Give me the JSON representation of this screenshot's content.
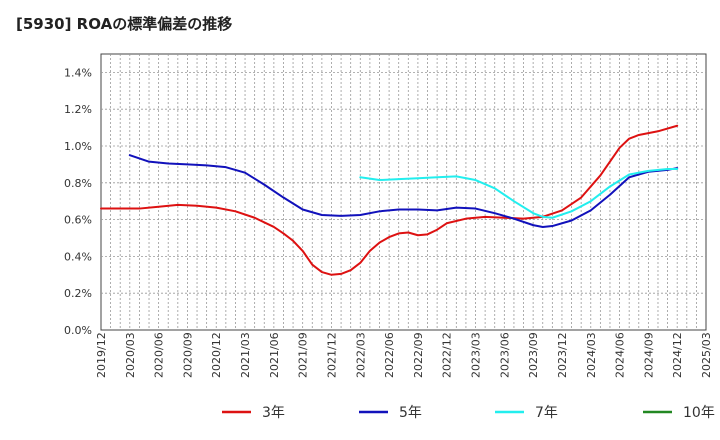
{
  "chart_data": {
    "type": "line",
    "title": "[5930]  ROAの標準偏差の推移",
    "xlabel": "",
    "ylabel": "",
    "ylim": [
      0,
      1.5
    ],
    "yticks": [
      "0.0%",
      "0.2%",
      "0.4%",
      "0.6%",
      "0.8%",
      "1.0%",
      "1.2%",
      "1.4%"
    ],
    "ytick_values": [
      0,
      0.2,
      0.4,
      0.6,
      0.8,
      1.0,
      1.2,
      1.4
    ],
    "xticks": [
      "2019/12",
      "2020/03",
      "2020/06",
      "2020/09",
      "2020/12",
      "2021/03",
      "2021/06",
      "2021/09",
      "2021/12",
      "2022/03",
      "2022/06",
      "2022/09",
      "2022/12",
      "2023/03",
      "2023/06",
      "2023/09",
      "2023/12",
      "2024/03",
      "2024/06",
      "2024/09",
      "2024/12",
      "2025/03"
    ],
    "grid": true,
    "legend_position": "bottom",
    "series": [
      {
        "name": "3年",
        "color": "#dd1111",
        "points": [
          [
            "2019/12",
            0.66
          ],
          [
            "2020/02",
            0.66
          ],
          [
            "2020/04",
            0.66
          ],
          [
            "2020/06",
            0.67
          ],
          [
            "2020/08",
            0.68
          ],
          [
            "2020/10",
            0.675
          ],
          [
            "2020/12",
            0.665
          ],
          [
            "2021/02",
            0.645
          ],
          [
            "2021/04",
            0.61
          ],
          [
            "2021/06",
            0.56
          ],
          [
            "2021/07",
            0.525
          ],
          [
            "2021/08",
            0.485
          ],
          [
            "2021/09",
            0.43
          ],
          [
            "2021/10",
            0.355
          ],
          [
            "2021/11",
            0.315
          ],
          [
            "2021/12",
            0.3
          ],
          [
            "2022/01",
            0.305
          ],
          [
            "2022/02",
            0.325
          ],
          [
            "2022/03",
            0.365
          ],
          [
            "2022/04",
            0.43
          ],
          [
            "2022/05",
            0.475
          ],
          [
            "2022/06",
            0.505
          ],
          [
            "2022/07",
            0.525
          ],
          [
            "2022/08",
            0.53
          ],
          [
            "2022/09",
            0.515
          ],
          [
            "2022/10",
            0.52
          ],
          [
            "2022/11",
            0.545
          ],
          [
            "2022/12",
            0.58
          ],
          [
            "2023/02",
            0.605
          ],
          [
            "2023/04",
            0.615
          ],
          [
            "2023/06",
            0.61
          ],
          [
            "2023/08",
            0.605
          ],
          [
            "2023/10",
            0.615
          ],
          [
            "2023/12",
            0.65
          ],
          [
            "2024/02",
            0.72
          ],
          [
            "2024/04",
            0.84
          ],
          [
            "2024/06",
            0.99
          ],
          [
            "2024/07",
            1.04
          ],
          [
            "2024/08",
            1.06
          ],
          [
            "2024/10",
            1.08
          ],
          [
            "2024/12",
            1.11
          ]
        ]
      },
      {
        "name": "5年",
        "color": "#1111bb",
        "points": [
          [
            "2020/03",
            0.95
          ],
          [
            "2020/05",
            0.915
          ],
          [
            "2020/07",
            0.905
          ],
          [
            "2020/09",
            0.9
          ],
          [
            "2020/11",
            0.895
          ],
          [
            "2021/01",
            0.885
          ],
          [
            "2021/03",
            0.855
          ],
          [
            "2021/05",
            0.79
          ],
          [
            "2021/07",
            0.72
          ],
          [
            "2021/09",
            0.655
          ],
          [
            "2021/11",
            0.625
          ],
          [
            "2022/01",
            0.62
          ],
          [
            "2022/03",
            0.625
          ],
          [
            "2022/05",
            0.645
          ],
          [
            "2022/07",
            0.655
          ],
          [
            "2022/09",
            0.655
          ],
          [
            "2022/11",
            0.65
          ],
          [
            "2023/01",
            0.665
          ],
          [
            "2023/03",
            0.66
          ],
          [
            "2023/05",
            0.635
          ],
          [
            "2023/07",
            0.605
          ],
          [
            "2023/09",
            0.57
          ],
          [
            "2023/10",
            0.56
          ],
          [
            "2023/11",
            0.565
          ],
          [
            "2024/01",
            0.595
          ],
          [
            "2024/03",
            0.65
          ],
          [
            "2024/05",
            0.735
          ],
          [
            "2024/07",
            0.83
          ],
          [
            "2024/09",
            0.86
          ],
          [
            "2024/11",
            0.87
          ],
          [
            "2024/12",
            0.88
          ]
        ]
      },
      {
        "name": "7年",
        "color": "#22eeee",
        "points": [
          [
            "2022/03",
            0.83
          ],
          [
            "2022/05",
            0.815
          ],
          [
            "2022/07",
            0.82
          ],
          [
            "2022/09",
            0.825
          ],
          [
            "2022/11",
            0.83
          ],
          [
            "2023/01",
            0.835
          ],
          [
            "2023/03",
            0.815
          ],
          [
            "2023/05",
            0.77
          ],
          [
            "2023/07",
            0.7
          ],
          [
            "2023/09",
            0.635
          ],
          [
            "2023/10",
            0.615
          ],
          [
            "2023/11",
            0.61
          ],
          [
            "2024/01",
            0.645
          ],
          [
            "2024/03",
            0.7
          ],
          [
            "2024/05",
            0.78
          ],
          [
            "2024/07",
            0.845
          ],
          [
            "2024/09",
            0.865
          ],
          [
            "2024/11",
            0.875
          ],
          [
            "2024/12",
            0.875
          ]
        ]
      },
      {
        "name": "10年",
        "color": "#228822",
        "points": []
      }
    ]
  }
}
